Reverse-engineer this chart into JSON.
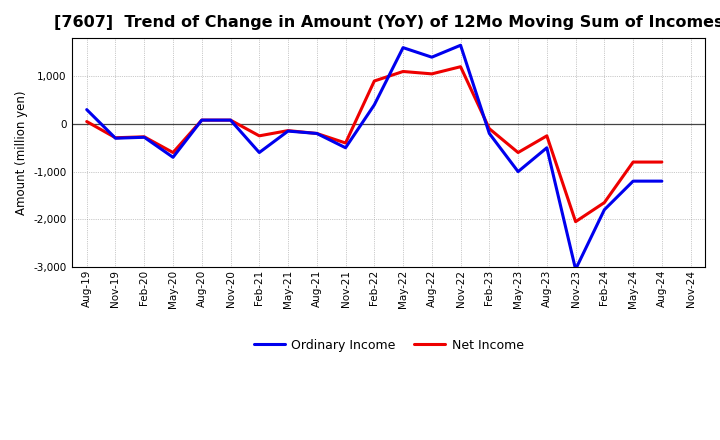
{
  "title": "[7607]  Trend of Change in Amount (YoY) of 12Mo Moving Sum of Incomes",
  "ylabel": "Amount (million yen)",
  "x_labels": [
    "Aug-19",
    "Nov-19",
    "Feb-20",
    "May-20",
    "Aug-20",
    "Nov-20",
    "Feb-21",
    "May-21",
    "Aug-21",
    "Nov-21",
    "Feb-22",
    "May-22",
    "Aug-22",
    "Nov-22",
    "Feb-23",
    "May-23",
    "Aug-23",
    "Nov-23",
    "Feb-24",
    "May-24",
    "Aug-24",
    "Nov-24"
  ],
  "ordinary_income": [
    300,
    -300,
    -280,
    -700,
    80,
    80,
    -600,
    -150,
    -200,
    -500,
    400,
    1600,
    1400,
    1650,
    -200,
    -1000,
    -500,
    -3050,
    -1800,
    -1200,
    -1200,
    null
  ],
  "net_income": [
    50,
    -290,
    -270,
    -600,
    80,
    80,
    -250,
    -140,
    -200,
    -400,
    900,
    1100,
    1050,
    1200,
    -100,
    -600,
    -250,
    -2050,
    -1650,
    -800,
    -800,
    null
  ],
  "ylim": [
    -3000,
    1800
  ],
  "yticks": [
    -3000,
    -2000,
    -1000,
    0,
    1000
  ],
  "ordinary_color": "#0000EE",
  "net_color": "#EE0000",
  "background_color": "#FFFFFF",
  "plot_bg_color": "#FFFFFF",
  "grid_color": "#999999",
  "linewidth": 2.2,
  "legend_ordinary": "Ordinary Income",
  "legend_net": "Net Income",
  "title_fontsize": 11.5,
  "ylabel_fontsize": 8.5,
  "tick_fontsize": 7.5,
  "legend_fontsize": 9
}
